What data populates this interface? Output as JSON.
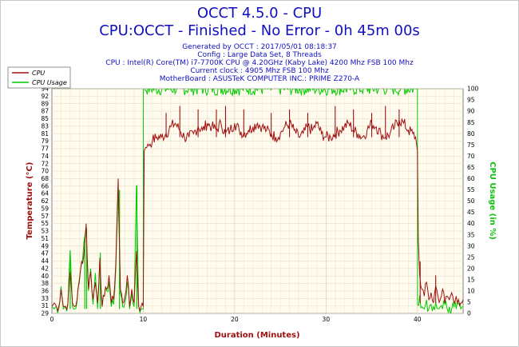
{
  "chart_data": {
    "type": "line",
    "title": "OCCT 4.5.0 - CPU",
    "subtitle": "CPU:OCCT - Finished - No Error - 0h 45m 00s",
    "info_lines": [
      "Generated by OCCT : 2017/05/01 08:18:37",
      "Config : Large Data Set, 8 Threads",
      "CPU : Intel(R) Core(TM) i7-7700K CPU @ 4.20GHz (Kaby Lake) 4200 Mhz FSB 100 Mhz",
      "Current clock : 4905 Mhz FSB 100 Mhz",
      "MotherBoard : ASUSTeK COMPUTER INC.: PRIME Z270-A"
    ],
    "xlabel": "Duration (Minutes)",
    "ylabel": "Temperature (°C)",
    "y2label": "CPU Usage (in %)",
    "xlim": [
      0,
      45
    ],
    "ylim": [
      29,
      94
    ],
    "y2lim": [
      0,
      100
    ],
    "x_ticks": [
      "0",
      "10",
      "20",
      "30",
      "40"
    ],
    "y_ticks": [
      "29",
      "31",
      "33",
      "36",
      "38",
      "40",
      "42",
      "44",
      "47",
      "49",
      "51",
      "53",
      "55",
      "57",
      "59",
      "62",
      "64",
      "66",
      "68",
      "70",
      "72",
      "74",
      "77",
      "79",
      "81",
      "83",
      "85",
      "87",
      "89",
      "92",
      "94"
    ],
    "y2_ticks": [
      "0",
      "5",
      "10",
      "15",
      "20",
      "25",
      "30",
      "35",
      "40",
      "45",
      "50",
      "55",
      "60",
      "65",
      "70",
      "75",
      "80",
      "85",
      "90",
      "95",
      "100"
    ],
    "legend_position": "top-left",
    "grid": true,
    "series": [
      {
        "name": "CPU",
        "axis": "left",
        "color": "#a01010",
        "x": [
          0,
          0.25,
          0.5,
          0.75,
          1,
          1.25,
          1.5,
          1.75,
          2,
          2.25,
          2.5,
          2.75,
          3,
          3.25,
          3.5,
          3.75,
          4,
          4.25,
          4.5,
          4.75,
          5,
          5.25,
          5.5,
          5.75,
          6,
          6.25,
          6.5,
          6.75,
          7,
          7.25,
          7.5,
          7.75,
          8,
          8.25,
          8.5,
          8.75,
          9,
          9.25,
          9.5,
          9.75,
          10,
          10.1,
          10.25,
          10.5,
          10.75,
          11,
          11.5,
          12,
          12.5,
          13,
          13.5,
          14,
          14.5,
          15,
          15.5,
          16,
          16.5,
          17,
          17.5,
          18,
          18.5,
          19,
          19.5,
          20,
          20.5,
          21,
          21.5,
          22,
          22.5,
          23,
          23.5,
          24,
          24.5,
          25,
          25.5,
          26,
          26.5,
          27,
          27.5,
          28,
          28.5,
          29,
          29.5,
          30,
          30.5,
          31,
          31.5,
          32,
          32.5,
          33,
          33.5,
          34,
          34.5,
          35,
          35.5,
          36,
          36.5,
          37,
          37.5,
          38,
          38.5,
          39,
          39.5,
          39.8,
          40,
          40.1,
          40.25,
          40.5,
          40.75,
          41,
          41.25,
          41.5,
          41.75,
          42,
          42.25,
          42.5,
          42.75,
          43,
          43.25,
          43.5,
          43.75,
          44,
          44.25,
          44.5,
          44.75,
          45
        ],
        "values": [
          31,
          32,
          31,
          31,
          36,
          31,
          31,
          32,
          41,
          32,
          31,
          33,
          38,
          44,
          46,
          55,
          36,
          41,
          33,
          38,
          32,
          45,
          31,
          34,
          36,
          40,
          32,
          33,
          44,
          68,
          36,
          32,
          34,
          40,
          31,
          36,
          32,
          47,
          31,
          31,
          31,
          76,
          77,
          78,
          78,
          79,
          80,
          80,
          81,
          83,
          84,
          82,
          80,
          80,
          81,
          83,
          82,
          84,
          83,
          82,
          84,
          81,
          82,
          84,
          82,
          81,
          82,
          83,
          84,
          83,
          82,
          81,
          80,
          81,
          83,
          84,
          82,
          80,
          81,
          83,
          82,
          84,
          81,
          80,
          80,
          81,
          82,
          83,
          84,
          82,
          81,
          80,
          82,
          84,
          83,
          81,
          80,
          81,
          83,
          85,
          84,
          82,
          81,
          80,
          76,
          50,
          40,
          36,
          34,
          38,
          33,
          35,
          32,
          37,
          34,
          33,
          36,
          32,
          34,
          33,
          35,
          32,
          34,
          33,
          32,
          33
        ],
        "peaks": [
          [
            12.5,
            87
          ],
          [
            14,
            89
          ],
          [
            16,
            88
          ],
          [
            18,
            88
          ],
          [
            19,
            89
          ],
          [
            21,
            88
          ],
          [
            24,
            87
          ],
          [
            26,
            88
          ],
          [
            28,
            87
          ],
          [
            31,
            89
          ],
          [
            33,
            88
          ],
          [
            35,
            87
          ],
          [
            36.5,
            89
          ],
          [
            38,
            88
          ],
          [
            40.3,
            44
          ],
          [
            42,
            40
          ]
        ]
      },
      {
        "name": "CPU Usage",
        "axis": "right",
        "color": "#00cc00",
        "x": [
          0,
          0.25,
          0.5,
          0.75,
          1,
          1.25,
          1.5,
          1.75,
          2,
          2.25,
          2.5,
          2.75,
          3,
          3.25,
          3.5,
          3.75,
          4,
          4.25,
          4.5,
          4.75,
          5,
          5.25,
          5.5,
          5.75,
          6,
          6.25,
          6.5,
          6.75,
          7,
          7.25,
          7.5,
          7.75,
          8,
          8.25,
          8.5,
          8.75,
          9,
          9.25,
          9.5,
          9.75,
          9.9,
          10,
          10.01,
          39.9,
          40,
          40.01,
          40.25,
          40.5,
          40.75,
          41,
          41.25,
          41.5,
          41.75,
          42,
          42.25,
          42.5,
          42.75,
          43,
          43.25,
          43.5,
          43.75,
          44,
          44.25,
          44.5,
          44.75,
          45
        ],
        "values": [
          3,
          2,
          3,
          2,
          12,
          2,
          3,
          4,
          28,
          3,
          2,
          5,
          15,
          22,
          32,
          38,
          10,
          20,
          4,
          18,
          2,
          25,
          3,
          8,
          10,
          14,
          3,
          4,
          20,
          55,
          9,
          3,
          5,
          14,
          2,
          9,
          3,
          57,
          3,
          2,
          2,
          2,
          100,
          100,
          100,
          4,
          8,
          3,
          2,
          6,
          2,
          4,
          3,
          5,
          2,
          3,
          2,
          4,
          2,
          3,
          2,
          3,
          2,
          4,
          2,
          3
        ],
        "spikes": [
          [
            7.4,
            55
          ],
          [
            9.3,
            57
          ],
          [
            3.8,
            38
          ],
          [
            3.6,
            33
          ],
          [
            5.3,
            27
          ],
          [
            2,
            28
          ]
        ]
      }
    ]
  }
}
